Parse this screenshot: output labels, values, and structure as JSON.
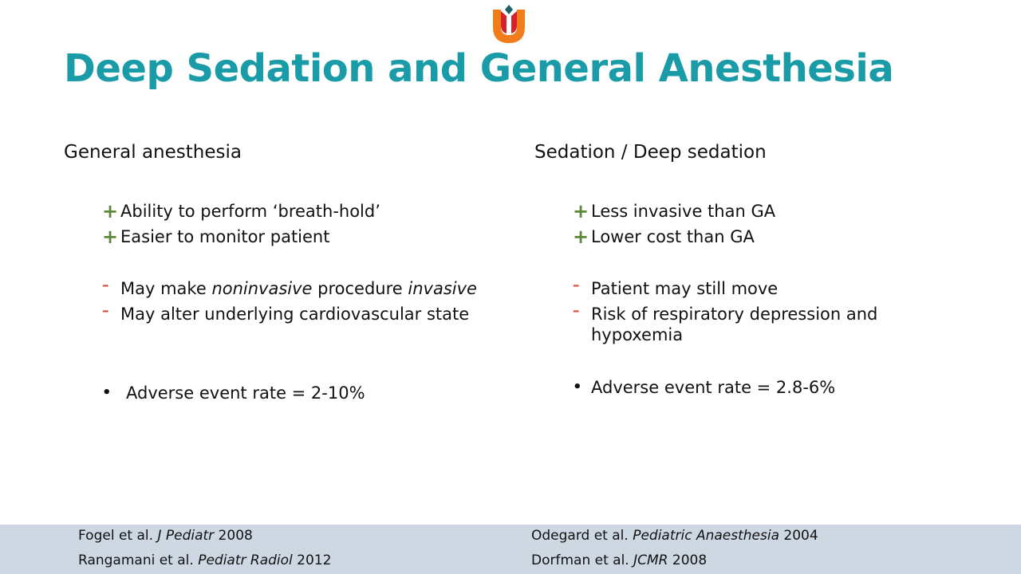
{
  "slide": {
    "title": "Deep Sedation and General Anesthesia",
    "colors": {
      "title": "#1a9ba8",
      "plus": "#5a8a3a",
      "minus": "#e04a3a",
      "footer": "#cdd8e3"
    },
    "left": {
      "heading": "General anesthesia",
      "pros": [
        "Ability to perform ‘breath-hold’",
        "Easier to monitor patient"
      ],
      "cons": [
        {
          "pre": "May make ",
          "em1": "noninvasive",
          "mid": " procedure ",
          "em2": "invasive"
        },
        "May alter underlying cardiovascular state"
      ],
      "adverse": "Adverse event rate = 2-10%"
    },
    "right": {
      "heading": "Sedation / Deep sedation",
      "pros": [
        "Less invasive than GA",
        "Lower cost than GA"
      ],
      "cons": [
        "Patient may still move",
        "Risk of respiratory depression and hypoxemia"
      ],
      "adverse": "Adverse event rate = 2.8-6%"
    },
    "markers": {
      "plus": "+",
      "minus": "–",
      "bullet": "•"
    },
    "footer": {
      "refs": [
        {
          "authors": "Fogel et al. ",
          "journal": "J Pediatr",
          "year": " 2008"
        },
        {
          "authors": "Rangamani et al. ",
          "journal": "Pediatr Radiol",
          "year": " 2012"
        },
        {
          "authors": "Odegard et al. ",
          "journal": "Pediatric Anaesthesia",
          "year": " 2004"
        },
        {
          "authors": "Dorfman et al. ",
          "journal": "JCMR",
          "year": " 2008"
        }
      ]
    }
  }
}
